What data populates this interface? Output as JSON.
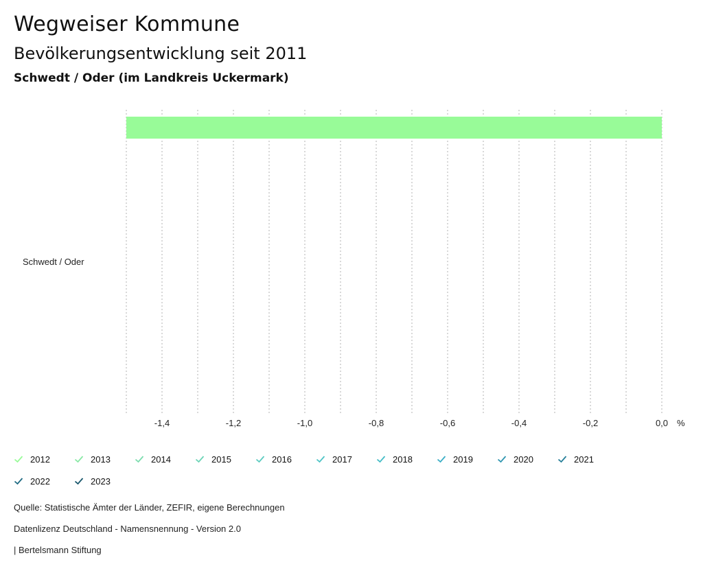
{
  "header": {
    "title": "Wegweiser Kommune",
    "subtitle": "Bevölkerungsentwicklung seit 2011",
    "region": "Schwedt / Oder (im Landkreis Uckermark)"
  },
  "chart_data": {
    "type": "bar",
    "orientation": "horizontal",
    "categories": [
      "Schwedt / Oder"
    ],
    "series": [
      {
        "name": "2012",
        "values": [
          -1.5
        ],
        "color": "#98fb98"
      },
      {
        "name": "2013",
        "values": [
          null
        ],
        "color": "#88e8a4"
      },
      {
        "name": "2014",
        "values": [
          null
        ],
        "color": "#7bdcae"
      },
      {
        "name": "2015",
        "values": [
          null
        ],
        "color": "#6cd4b6"
      },
      {
        "name": "2016",
        "values": [
          null
        ],
        "color": "#5ccbc0"
      },
      {
        "name": "2017",
        "values": [
          null
        ],
        "color": "#4ec4c6"
      },
      {
        "name": "2018",
        "values": [
          null
        ],
        "color": "#43bcc6"
      },
      {
        "name": "2019",
        "values": [
          null
        ],
        "color": "#3aaec6"
      },
      {
        "name": "2020",
        "values": [
          null
        ],
        "color": "#2f96b0"
      },
      {
        "name": "2021",
        "values": [
          null
        ],
        "color": "#267f99"
      },
      {
        "name": "2022",
        "values": [
          null
        ],
        "color": "#1e6a82"
      },
      {
        "name": "2023",
        "values": [
          null
        ],
        "color": "#17566b"
      }
    ],
    "xlim": [
      -1.5,
      0.0
    ],
    "xticks": [
      "-1,4",
      "-1,2",
      "-1,0",
      "-0,8",
      "-0,6",
      "-0,4",
      "-0,2",
      "0,0"
    ],
    "xtick_values": [
      -1.4,
      -1.2,
      -1.0,
      -0.8,
      -0.6,
      -0.4,
      -0.2,
      0.0
    ],
    "unit": "%",
    "grid": true,
    "legend_position": "bottom"
  },
  "footer": {
    "source": "Quelle: Statistische Ämter der Länder, ZEFIR, eigene Berechnungen",
    "license": "Datenlizenz Deutschland - Namensnennung - Version 2.0",
    "publisher": "| Bertelsmann Stiftung"
  }
}
